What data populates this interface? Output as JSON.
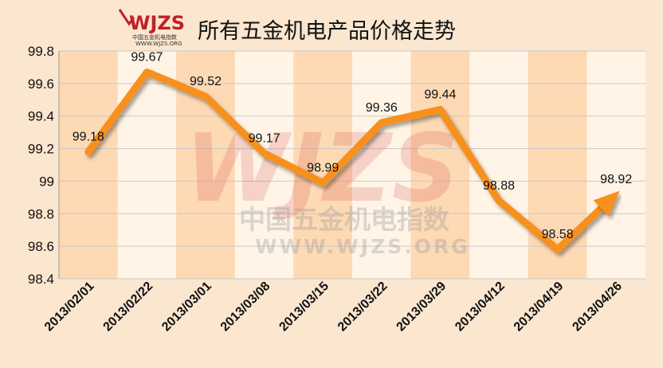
{
  "header": {
    "logo_text": "WJZS",
    "logo_subtitle": "中国五金机电指数",
    "logo_url": "WWW.WJZS.ORG",
    "title": "所有五金机电产品价格走势"
  },
  "watermark": {
    "logo_text": "WJZS",
    "cn_text": "中国五金机电指数",
    "url_text": "WWW.WJZS.ORG"
  },
  "colors": {
    "line": "#f7901e",
    "background": "#fbe6cf",
    "plot_band_dark": "#fdd9b4",
    "plot_band_light": "#fff4e6",
    "brand_red": "#c0212a"
  },
  "chart_data": {
    "type": "line",
    "title": "所有五金机电产品价格走势",
    "xlabel": "",
    "ylabel": "",
    "categories": [
      "2013/02/01",
      "2013/02/22",
      "2013/03/01",
      "2013/03/08",
      "2013/03/15",
      "2013/03/22",
      "2013/03/29",
      "2013/04/12",
      "2013/04/19",
      "2013/04/26"
    ],
    "series": [
      {
        "values": [
          99.18,
          99.67,
          99.52,
          99.17,
          98.99,
          99.36,
          99.44,
          98.88,
          98.58,
          98.92
        ],
        "labels": [
          "99.18",
          "99.67",
          "99.52",
          "99.17",
          "98.99",
          "99.36",
          "99.44",
          "98.88",
          "98.58",
          "98.92"
        ]
      }
    ],
    "ylim": [
      98.4,
      99.8
    ],
    "yticks": [
      "99.8",
      "99.6",
      "99.4",
      "99.2",
      "99",
      "98.8",
      "98.6",
      "98.4"
    ],
    "grid": true,
    "legend": "none",
    "end_marker": "arrow"
  }
}
